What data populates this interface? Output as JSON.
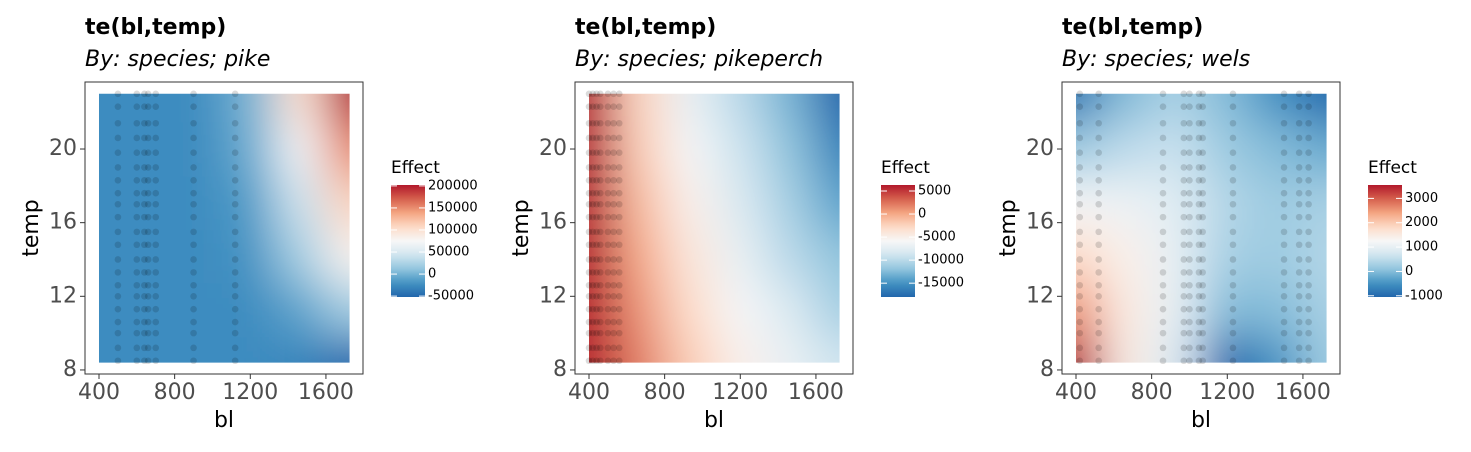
{
  "chart_data": [
    {
      "type": "heatmap",
      "title": "te(bl,temp)",
      "subtitle": "By: species; pike",
      "xlabel": "bl",
      "ylabel": "temp",
      "xlim": [
        326,
        1796
      ],
      "ylim": [
        7.78,
        23.64
      ],
      "xticks": [
        400,
        800,
        1200,
        1600
      ],
      "yticks": [
        8,
        12,
        16,
        20
      ],
      "x": [
        400,
        665,
        930,
        1195,
        1460,
        1725
      ],
      "y": [
        8.4,
        11.3,
        14.2,
        17.1,
        20,
        23
      ],
      "z": [
        [
          -25000,
          -25000,
          -25000,
          -25000,
          -30000,
          -50000
        ],
        [
          -25000,
          -25000,
          -25000,
          -25000,
          -10000,
          20000
        ],
        [
          -25000,
          -25000,
          -25000,
          -20000,
          20000,
          80000
        ],
        [
          -25000,
          -25000,
          -25000,
          -15000,
          40000,
          110000
        ],
        [
          -25000,
          -25000,
          -25000,
          -5000,
          70000,
          150000
        ],
        [
          -25000,
          -25000,
          -25000,
          0,
          100000,
          200000
        ]
      ],
      "obs_bl": [
        500,
        600,
        640,
        660,
        700,
        900,
        1120
      ],
      "obs_temp": [
        8.5,
        9.2,
        10,
        10.6,
        11.3,
        12,
        12.6,
        13.3,
        14,
        14.8,
        15.5,
        16.3,
        17,
        17.6,
        18.3,
        19,
        19.8,
        20.6,
        21.4,
        22.3,
        23
      ],
      "legend_title": "Effect",
      "clim": [
        -52000,
        202000
      ],
      "cticks": [
        200000,
        150000,
        100000,
        50000,
        0,
        -50000
      ],
      "colors": [
        "#2166ac",
        "#4393c3",
        "#92c5de",
        "#d1e5f0",
        "#f7f7f7",
        "#fddbc7",
        "#f4a582",
        "#d6604d",
        "#b2182b"
      ]
    },
    {
      "type": "heatmap",
      "title": "te(bl,temp)",
      "subtitle": "By: species; pikeperch",
      "xlabel": "bl",
      "ylabel": "temp",
      "xlim": [
        326,
        1796
      ],
      "ylim": [
        7.78,
        23.64
      ],
      "xticks": [
        400,
        800,
        1200,
        1600
      ],
      "yticks": [
        8,
        12,
        16,
        20
      ],
      "x": [
        400,
        665,
        930,
        1195,
        1460,
        1725
      ],
      "y": [
        8.4,
        11.3,
        14.2,
        17.1,
        20,
        23
      ],
      "z": [
        [
          6000,
          2000,
          -2000,
          -5000,
          -7000,
          -9000
        ],
        [
          6000,
          1000,
          -3000,
          -6000,
          -8000,
          -11000
        ],
        [
          6000,
          0,
          -4000,
          -7000,
          -10000,
          -12000
        ],
        [
          6000,
          -1000,
          -5000,
          -8000,
          -11000,
          -14000
        ],
        [
          6000,
          -2000,
          -6000,
          -9000,
          -12000,
          -16000
        ],
        [
          6000,
          -2500,
          -7000,
          -10000,
          -13000,
          -18000
        ]
      ],
      "obs_bl": [
        400,
        420,
        440,
        460,
        500,
        530,
        560
      ],
      "obs_temp": [
        8.5,
        9.2,
        10,
        10.6,
        11.3,
        12,
        12.6,
        13.3,
        14,
        14.8,
        15.5,
        16.3,
        17,
        17.6,
        18.3,
        19,
        19.8,
        20.6,
        21.4,
        22.3,
        23
      ],
      "legend_title": "Effect",
      "clim": [
        -18000,
        6300
      ],
      "cticks": [
        5000,
        0,
        -5000,
        -10000,
        -15000
      ],
      "colors": [
        "#2166ac",
        "#4393c3",
        "#92c5de",
        "#d1e5f0",
        "#f7f7f7",
        "#fddbc7",
        "#f4a582",
        "#d6604d",
        "#b2182b"
      ]
    },
    {
      "type": "heatmap",
      "title": "te(bl,temp)",
      "subtitle": "By: species; wels",
      "xlabel": "bl",
      "ylabel": "temp",
      "xlim": [
        326,
        1796
      ],
      "ylim": [
        7.78,
        23.64
      ],
      "xticks": [
        400,
        800,
        1200,
        1600
      ],
      "yticks": [
        8,
        12,
        16,
        20
      ],
      "x": [
        400,
        665,
        930,
        1195,
        1460,
        1725
      ],
      "y": [
        8.4,
        11.3,
        14.2,
        17.1,
        20,
        23
      ],
      "z": [
        [
          3500,
          1500,
          800,
          -1200,
          -500,
          200
        ],
        [
          2500,
          1500,
          1000,
          0,
          0,
          300
        ],
        [
          1800,
          1400,
          1000,
          300,
          200,
          400
        ],
        [
          1200,
          1100,
          900,
          400,
          200,
          300
        ],
        [
          200,
          500,
          600,
          200,
          0,
          -200
        ],
        [
          -800,
          0,
          300,
          0,
          -500,
          -1000
        ]
      ],
      "obs_bl": [
        420,
        520,
        860,
        970,
        1000,
        1050,
        1070,
        1230,
        1500,
        1580,
        1630
      ],
      "obs_temp": [
        8.5,
        9.2,
        10,
        10.6,
        11.3,
        12,
        12.6,
        13.3,
        14,
        14.8,
        15.5,
        16.3,
        17,
        17.6,
        18.3,
        19,
        19.8,
        20.6,
        21.4,
        22.3,
        23
      ],
      "legend_title": "Effect",
      "clim": [
        -1050,
        3550
      ],
      "cticks": [
        3000,
        2000,
        1000,
        0,
        -1000
      ],
      "colors": [
        "#2166ac",
        "#4393c3",
        "#92c5de",
        "#d1e5f0",
        "#f7f7f7",
        "#fddbc7",
        "#f4a582",
        "#d6604d",
        "#b2182b"
      ]
    }
  ]
}
